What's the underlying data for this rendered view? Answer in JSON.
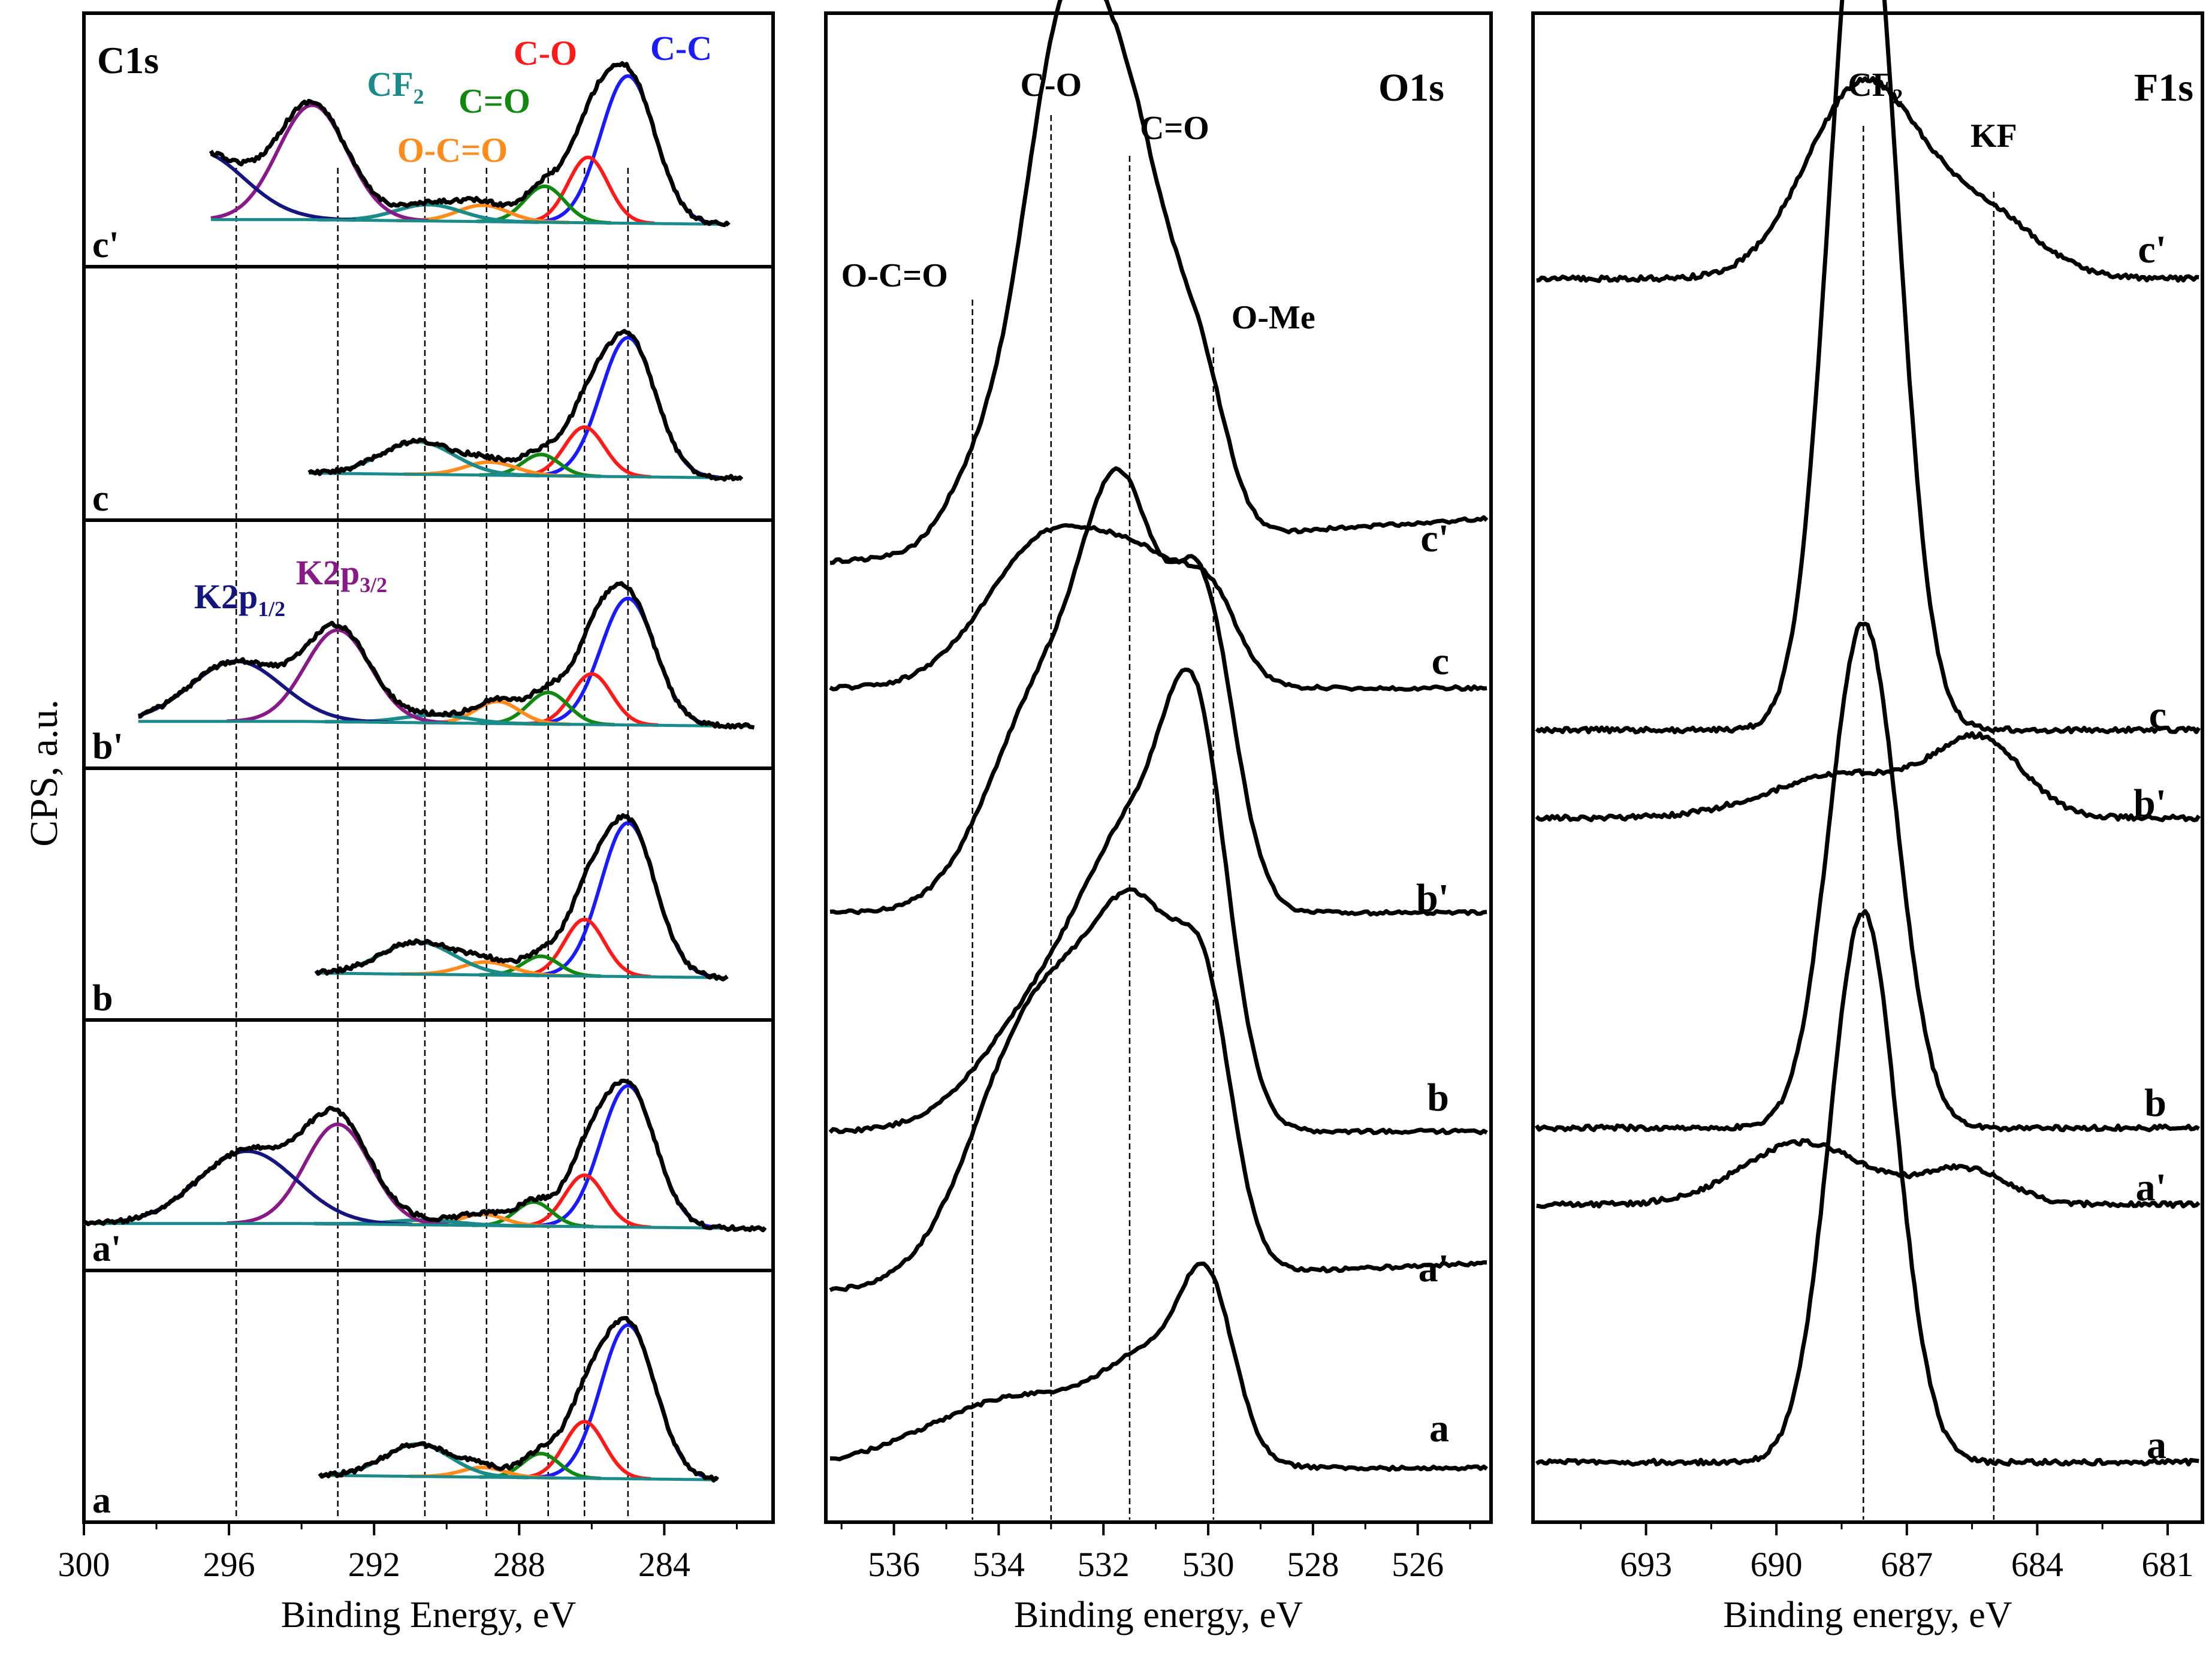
{
  "figure": {
    "y_axis_label": "CPS, a.u.",
    "colors": {
      "CC": "#1a1aff",
      "CO": "#ff1a1a",
      "C=O": "#118811",
      "O-C=O": "#ff8c1a",
      "CF2": "#1a8a8a",
      "K2p12": "#151580",
      "K2p32": "#881a88",
      "envelope": "#000000"
    }
  },
  "chart_data": [
    {
      "id": "c1s",
      "type": "line",
      "title": "C1s",
      "xlabel": "Binding Energy, eV",
      "ylabel": "CPS, a.u.",
      "xlim": [
        300,
        281
      ],
      "x_ticks": [
        300,
        296,
        292,
        288,
        284
      ],
      "reference_lines_eV": [
        295.8,
        293.0,
        290.6,
        288.9,
        287.2,
        286.2,
        285.0
      ],
      "peak_labels": [
        {
          "text": "C-O",
          "color_key": "CO"
        },
        {
          "text": "C-C",
          "color_key": "CC"
        },
        {
          "text": "CF",
          "sub": "2",
          "color_key": "CF2"
        },
        {
          "text": "C=O",
          "color_key": "C=O"
        },
        {
          "text": "O-C=O",
          "color_key": "O-C=O"
        },
        {
          "text": "K2p",
          "sub": "1/2",
          "color_key": "K2p12"
        },
        {
          "text": "K2p",
          "sub": "3/2",
          "color_key": "K2p32"
        }
      ],
      "samples": [
        {
          "label": "c'",
          "range": [
            296.5,
            282.2
          ],
          "components": [
            {
              "name": "C-C",
              "center": 285.0,
              "height": 0.9,
              "width": 0.75
            },
            {
              "name": "C-O",
              "center": 286.1,
              "height": 0.4,
              "width": 0.55
            },
            {
              "name": "C=O",
              "center": 287.3,
              "height": 0.22,
              "width": 0.55
            },
            {
              "name": "O-C=O",
              "center": 289.0,
              "height": 0.1,
              "width": 0.7
            },
            {
              "name": "CF2",
              "center": 290.5,
              "height": 0.1,
              "width": 0.9
            },
            {
              "name": "K2p3/2",
              "center": 293.7,
              "height": 0.7,
              "width": 0.95
            },
            {
              "name": "K2p1/2",
              "center": 296.9,
              "height": 0.42,
              "width": 1.3
            }
          ]
        },
        {
          "label": "c",
          "range": [
            293.8,
            281.8
          ],
          "components": [
            {
              "name": "C-C",
              "center": 285.0,
              "height": 0.85,
              "width": 0.75
            },
            {
              "name": "C-O",
              "center": 286.2,
              "height": 0.3,
              "width": 0.55
            },
            {
              "name": "C=O",
              "center": 287.4,
              "height": 0.13,
              "width": 0.5
            },
            {
              "name": "O-C=O",
              "center": 288.8,
              "height": 0.08,
              "width": 0.7
            },
            {
              "name": "CF2",
              "center": 290.8,
              "height": 0.2,
              "width": 1.0
            }
          ]
        },
        {
          "label": "b'",
          "range": [
            298.5,
            281.5
          ],
          "components": [
            {
              "name": "C-C",
              "center": 285.0,
              "height": 0.8,
              "width": 0.75
            },
            {
              "name": "C-O",
              "center": 286.0,
              "height": 0.32,
              "width": 0.55
            },
            {
              "name": "C=O",
              "center": 287.2,
              "height": 0.2,
              "width": 0.55
            },
            {
              "name": "O-C=O",
              "center": 288.6,
              "height": 0.14,
              "width": 0.6
            },
            {
              "name": "CF2",
              "center": 290.3,
              "height": 0.05,
              "width": 0.9
            },
            {
              "name": "K2p3/2",
              "center": 293.0,
              "height": 0.58,
              "width": 0.9
            },
            {
              "name": "K2p1/2",
              "center": 295.8,
              "height": 0.38,
              "width": 1.25
            }
          ]
        },
        {
          "label": "b",
          "range": [
            293.6,
            282.2
          ],
          "components": [
            {
              "name": "C-C",
              "center": 285.0,
              "height": 0.95,
              "width": 0.75
            },
            {
              "name": "C-O",
              "center": 286.2,
              "height": 0.35,
              "width": 0.55
            },
            {
              "name": "C=O",
              "center": 287.4,
              "height": 0.12,
              "width": 0.5
            },
            {
              "name": "O-C=O",
              "center": 288.9,
              "height": 0.08,
              "width": 0.7
            },
            {
              "name": "CF2",
              "center": 290.8,
              "height": 0.2,
              "width": 1.0
            }
          ]
        },
        {
          "label": "a'",
          "range": [
            300.0,
            281.2
          ],
          "components": [
            {
              "name": "C-C",
              "center": 285.0,
              "height": 0.88,
              "width": 0.75
            },
            {
              "name": "C-O",
              "center": 286.2,
              "height": 0.32,
              "width": 0.55
            },
            {
              "name": "C=O",
              "center": 287.6,
              "height": 0.15,
              "width": 0.5
            },
            {
              "name": "O-C=O",
              "center": 289.0,
              "height": 0.07,
              "width": 0.6
            },
            {
              "name": "CF2",
              "center": 290.6,
              "height": 0.03,
              "width": 0.9
            },
            {
              "name": "K2p3/2",
              "center": 293.0,
              "height": 0.62,
              "width": 0.9
            },
            {
              "name": "K2p1/2",
              "center": 295.5,
              "height": 0.45,
              "width": 1.35
            }
          ]
        },
        {
          "label": "a",
          "range": [
            293.5,
            282.5
          ],
          "components": [
            {
              "name": "C-C",
              "center": 285.0,
              "height": 0.95,
              "width": 0.75
            },
            {
              "name": "C-O",
              "center": 286.2,
              "height": 0.35,
              "width": 0.55
            },
            {
              "name": "C=O",
              "center": 287.4,
              "height": 0.15,
              "width": 0.5
            },
            {
              "name": "O-C=O",
              "center": 289.0,
              "height": 0.06,
              "width": 0.6
            },
            {
              "name": "CF2",
              "center": 290.8,
              "height": 0.2,
              "width": 0.9
            }
          ]
        }
      ]
    },
    {
      "id": "o1s",
      "type": "line",
      "title": "O1s",
      "xlabel": "Binding energy, eV",
      "xlim": [
        537.3,
        524.6
      ],
      "x_ticks": [
        536,
        534,
        532,
        530,
        528,
        526
      ],
      "reference_lines": [
        {
          "label": "O-C=O",
          "eV": 534.5
        },
        {
          "label": "C-O",
          "eV": 533.0
        },
        {
          "label": "C=O",
          "eV": 531.5
        },
        {
          "label": "O-Me",
          "eV": 529.9
        }
      ],
      "curves": [
        {
          "label": "c'",
          "start": 0.0,
          "end": 0.06,
          "peaks": [
            {
              "center": 532.8,
              "height": 0.66,
              "width": 0.8
            },
            {
              "center": 531.4,
              "height": 0.48,
              "width": 0.8
            },
            {
              "center": 530.1,
              "height": 0.15,
              "width": 0.5
            },
            {
              "center": 534.5,
              "height": 0.08,
              "width": 0.6
            }
          ]
        },
        {
          "label": "c",
          "start": 0.0,
          "end": 0.0,
          "peaks": [
            {
              "center": 533.0,
              "height": 0.21,
              "width": 1.2
            },
            {
              "center": 531.0,
              "height": 0.13,
              "width": 0.9
            },
            {
              "center": 529.9,
              "height": 0.08,
              "width": 0.5
            }
          ]
        },
        {
          "label": "b'",
          "start": 0.0,
          "end": 0.0,
          "peaks": [
            {
              "center": 533.0,
              "height": 0.32,
              "width": 1.1
            },
            {
              "center": 531.6,
              "height": 0.45,
              "width": 0.7
            },
            {
              "center": 530.1,
              "height": 0.42,
              "width": 0.6
            }
          ]
        },
        {
          "label": "b",
          "start": 0.0,
          "end": 0.0,
          "peaks": [
            {
              "center": 532.8,
              "height": 0.2,
              "width": 1.3
            },
            {
              "center": 531.3,
              "height": 0.3,
              "width": 0.9
            },
            {
              "center": 530.2,
              "height": 0.45,
              "width": 0.6
            }
          ]
        },
        {
          "label": "a'",
          "start": 0.0,
          "end": 0.04,
          "peaks": [
            {
              "center": 533.2,
              "height": 0.38,
              "width": 1.2
            },
            {
              "center": 531.2,
              "height": 0.42,
              "width": 0.9
            },
            {
              "center": 530.0,
              "height": 0.25,
              "width": 0.5
            }
          ]
        },
        {
          "label": "a",
          "start": 0.0,
          "end": 0.0,
          "peaks": [
            {
              "center": 533.5,
              "height": 0.1,
              "width": 1.8
            },
            {
              "center": 531.0,
              "height": 0.12,
              "width": 0.9
            },
            {
              "center": 530.0,
              "height": 0.2,
              "width": 0.5
            }
          ]
        }
      ]
    },
    {
      "id": "f1s",
      "type": "line",
      "title": "F1s",
      "xlabel": "Binding energy, eV",
      "xlim": [
        695.6,
        680.2
      ],
      "x_ticks": [
        693,
        690,
        687,
        684,
        681
      ],
      "reference_lines": [
        {
          "label": "CF",
          "sub": "2",
          "eV": 688.0
        },
        {
          "label": "KF",
          "eV": 685.0
        }
      ],
      "curves": [
        {
          "label": "c'",
          "start": 0.0,
          "end": 0.0,
          "peaks": [
            {
              "center": 688.0,
              "height": 0.22,
              "width": 1.3
            },
            {
              "center": 685.2,
              "height": 0.07,
              "width": 1.2
            }
          ]
        },
        {
          "label": "c",
          "start": 0.0,
          "end": 0.0,
          "peaks": [
            {
              "center": 688.0,
              "height": 1.0,
              "width": 0.78
            }
          ]
        },
        {
          "label": "b'",
          "start": 0.0,
          "end": 0.0,
          "peaks": [
            {
              "center": 688.3,
              "height": 0.05,
              "width": 1.8
            },
            {
              "center": 685.3,
              "height": 0.08,
              "width": 1.0
            }
          ]
        },
        {
          "label": "b",
          "start": 0.0,
          "end": 0.0,
          "peaks": [
            {
              "center": 688.0,
              "height": 0.57,
              "width": 0.78
            }
          ]
        },
        {
          "label": "a'",
          "start": 0.0,
          "end": 0.0,
          "peaks": [
            {
              "center": 689.4,
              "height": 0.07,
              "width": 1.4
            },
            {
              "center": 685.7,
              "height": 0.04,
              "width": 1.0
            }
          ]
        },
        {
          "label": "a",
          "start": 0.0,
          "end": 0.0,
          "peaks": [
            {
              "center": 688.0,
              "height": 0.62,
              "width": 0.78
            }
          ]
        }
      ]
    }
  ]
}
